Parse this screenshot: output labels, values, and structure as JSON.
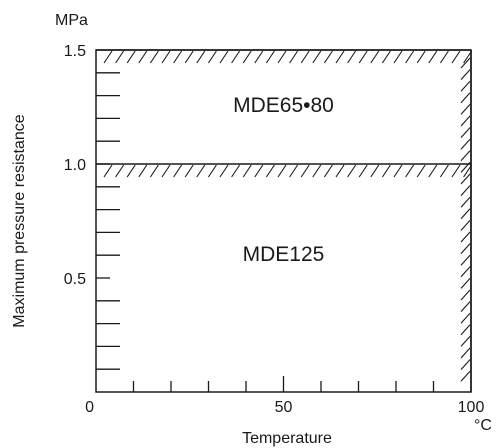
{
  "chart_data": {
    "type": "area",
    "ylabel": "Maximum pressure resistance",
    "xlabel": "Temperature",
    "y_unit": "MPa",
    "x_unit": "°C",
    "xlim": [
      0,
      100
    ],
    "ylim": [
      0,
      1.5
    ],
    "x_ticks": [
      0,
      50,
      100
    ],
    "x_tick_labels": [
      "0",
      "50",
      "100"
    ],
    "x_minor_step": 10,
    "y_ticks": [
      0.5,
      1.0,
      1.5
    ],
    "y_tick_labels": [
      "0.5",
      "1.0",
      "1.5"
    ],
    "y_minor_step": 0.1,
    "grid": false,
    "regions": [
      {
        "name": "MDE65•80",
        "x": [
          0,
          100
        ],
        "y": [
          1.0,
          1.5
        ]
      },
      {
        "name": "MDE125",
        "x": [
          0,
          100
        ],
        "y": [
          0,
          1.0
        ]
      }
    ],
    "limit_lines": [
      {
        "axis": "y",
        "value": 1.5
      },
      {
        "axis": "y",
        "value": 1.0
      },
      {
        "axis": "x",
        "value": 100
      }
    ]
  }
}
